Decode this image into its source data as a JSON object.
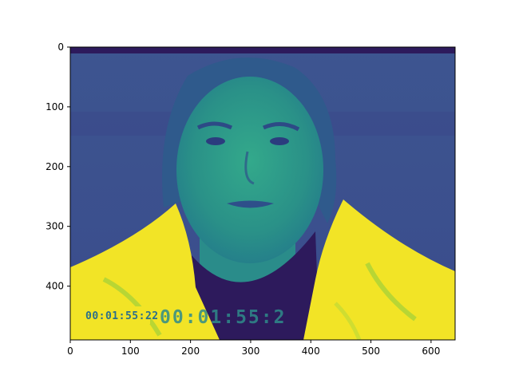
{
  "chart_data": {
    "type": "image",
    "title": "",
    "xlabel": "",
    "ylabel": "",
    "xlim": [
      0,
      640
    ],
    "ylim": [
      490,
      0
    ],
    "x_ticks": [
      0,
      100,
      200,
      300,
      400,
      500,
      600
    ],
    "y_ticks": [
      0,
      100,
      200,
      300,
      400
    ],
    "colormap": "viridis",
    "grid": false,
    "image_content": {
      "subject": "portrait of a woman wearing a yellow jacket",
      "overlay_text_small": "00:01:55:22",
      "overlay_text_large": "00:01:55:2"
    }
  },
  "colors": {
    "background_band": "#3b4f8e",
    "dark": "#2d1a5c",
    "face": "#2a9a8a",
    "jacket": "#f2e426"
  }
}
